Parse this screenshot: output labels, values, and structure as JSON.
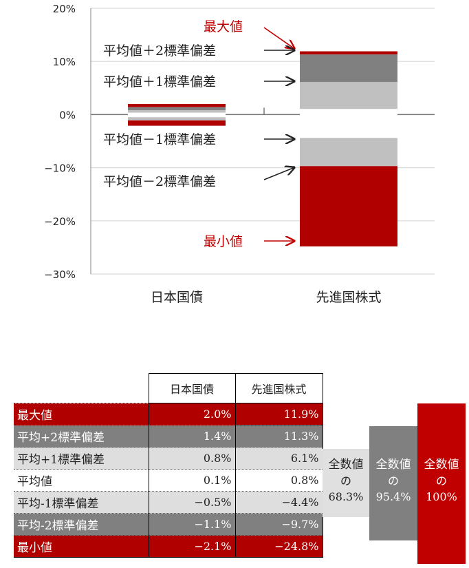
{
  "chart_data": {
    "type": "bar",
    "subtype": "stacked-range",
    "categories": [
      "日本国債",
      "先進国株式"
    ],
    "ylim": [
      -30,
      20
    ],
    "yticks": [
      {
        "value": 20,
        "label": "20%"
      },
      {
        "value": 10,
        "label": "10%"
      },
      {
        "value": 0,
        "label": "0%"
      },
      {
        "value": -10,
        "label": "−10%"
      },
      {
        "value": -20,
        "label": "−20%"
      },
      {
        "value": -30,
        "label": "−30%"
      }
    ],
    "grid": true,
    "series": [
      {
        "key": "max",
        "values": [
          2.0,
          11.9
        ],
        "color": "#b00000"
      },
      {
        "key": "p2",
        "values": [
          1.4,
          11.3
        ],
        "color": "#808080"
      },
      {
        "key": "p1",
        "values": [
          0.8,
          6.1
        ],
        "color": "#c0c0c0"
      },
      {
        "key": "mean",
        "values": [
          0.1,
          0.8
        ],
        "color": "#ffffff"
      },
      {
        "key": "m1",
        "values": [
          -0.5,
          -4.4
        ],
        "color": "#c0c0c0"
      },
      {
        "key": "m2",
        "values": [
          -1.1,
          -9.7
        ],
        "color": "#606060"
      },
      {
        "key": "min",
        "values": [
          -2.1,
          -24.8
        ],
        "color": "#b00000"
      }
    ],
    "annotations": [
      {
        "text": "最大値",
        "color": "#c00000",
        "target": 11.9
      },
      {
        "text": "平均値＋2標準偏差",
        "color": "#222222",
        "target": 11.3
      },
      {
        "text": "平均値＋1標準偏差",
        "color": "#222222",
        "target": 6.1
      },
      {
        "text": "平均値－1標準偏差",
        "color": "#222222",
        "target": -4.4
      },
      {
        "text": "平均値－2標準偏差",
        "color": "#222222",
        "target": -9.7
      },
      {
        "text": "最小値",
        "color": "#c00000",
        "target": -24.8
      }
    ]
  },
  "table": {
    "headers": [
      "日本国債",
      "先進国株式"
    ],
    "rows": [
      {
        "label": "最大値",
        "v1": "2.0%",
        "v2": "11.9%",
        "bg": "#b00000",
        "fg": "#ffffff"
      },
      {
        "label": "平均+2標準偏差",
        "v1": "1.4%",
        "v2": "11.3%",
        "bg": "#808080",
        "fg": "#ffffff"
      },
      {
        "label": "平均+1標準偏差",
        "v1": "0.8%",
        "v2": "6.1%",
        "bg": "#dedede",
        "fg": "#222222"
      },
      {
        "label": "平均値",
        "v1": "0.1%",
        "v2": "0.8%",
        "bg": "#ffffff",
        "fg": "#222222"
      },
      {
        "label": "平均-1標準偏差",
        "v1": "−0.5%",
        "v2": "−4.4%",
        "bg": "#dedede",
        "fg": "#222222"
      },
      {
        "label": "平均-2標準偏差",
        "v1": "−1.1%",
        "v2": "−9.7%",
        "bg": "#808080",
        "fg": "#ffffff"
      },
      {
        "label": "最小値",
        "v1": "−2.1%",
        "v2": "−24.8%",
        "bg": "#b00000",
        "fg": "#ffffff"
      }
    ]
  },
  "coverage": [
    {
      "title": "全数値",
      "of": "の",
      "pct": "68.3%"
    },
    {
      "title": "全数値",
      "of": "の",
      "pct": "95.4%"
    },
    {
      "title": "全数値",
      "of": "の",
      "pct": "100%"
    }
  ]
}
